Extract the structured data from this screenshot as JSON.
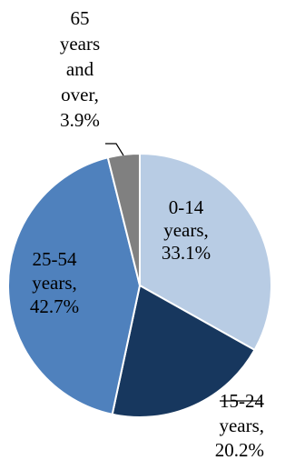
{
  "chart_data": {
    "type": "pie",
    "title": "",
    "slices": [
      {
        "label_lines": [
          "0-14",
          "years,",
          "33.1%"
        ],
        "category": "0-14 years",
        "value": 33.1,
        "color": "#b8cce4"
      },
      {
        "label_lines": [
          "15-24",
          "years,",
          "20.2%"
        ],
        "category": "15-24 years",
        "value": 20.2,
        "color": "#17375e"
      },
      {
        "label_lines": [
          "25-54",
          "years,",
          "42.7%"
        ],
        "category": "25-54 years",
        "value": 42.7,
        "color": "#4f81bd"
      },
      {
        "label_lines": [
          "65",
          "years",
          "and",
          "over,",
          "3.9%"
        ],
        "category": "65 years and over",
        "value": 3.9,
        "color": "#808080"
      }
    ],
    "legend": "none",
    "border_color": "#ffffff"
  }
}
